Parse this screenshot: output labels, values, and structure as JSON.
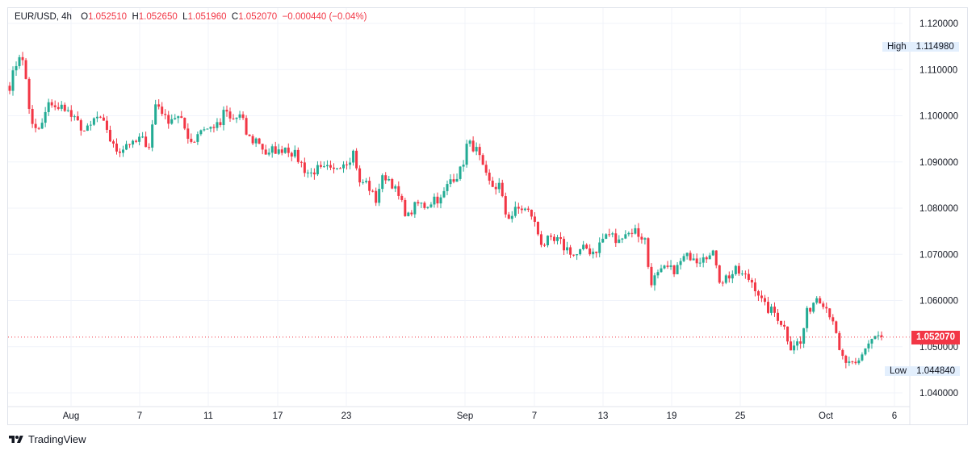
{
  "header": {
    "symbol": "EUR/USD, 4h",
    "o_label": "O",
    "o_value": "1.052510",
    "h_label": "H",
    "h_value": "1.052650",
    "l_label": "L",
    "l_value": "1.051960",
    "c_label": "C",
    "c_value": "1.052070",
    "change": "−0.000440 (−0.04%)"
  },
  "markers": {
    "high_label": "High",
    "high_value": "1.114980",
    "low_label": "Low",
    "low_value": "1.044840",
    "last_price": "1.052070"
  },
  "branding": {
    "text": "TradingView"
  },
  "colors": {
    "up": "#22ab94",
    "down": "#f23645",
    "grid": "#f0f3fa",
    "text": "#131722"
  },
  "chart_data": {
    "type": "candlestick",
    "symbol": "EUR/USD",
    "interval": "4h",
    "ylim": [
      1.0375,
      1.1225
    ],
    "y_ticks": [
      "1.120000",
      "1.110000",
      "1.100000",
      "1.090000",
      "1.080000",
      "1.070000",
      "1.060000",
      "1.050000",
      "1.040000"
    ],
    "x_ticks": [
      "Aug",
      "7",
      "11",
      "17",
      "23",
      "Sep",
      "7",
      "13",
      "19",
      "25",
      "Oct",
      "6"
    ],
    "last_close": 1.05207,
    "high": 1.11498,
    "low": 1.04484,
    "close_path": [
      1.1065,
      1.1105,
      1.114,
      1.108,
      1.098,
      1.0965,
      1.098,
      1.102,
      1.103,
      1.101,
      1.1025,
      1.1005,
      1.099,
      1.098,
      1.0965,
      1.0975,
      1.1,
      1.0985,
      1.0975,
      1.0935,
      1.0925,
      1.093,
      1.0945,
      1.0935,
      1.095,
      1.0945,
      1.0935,
      1.1025,
      1.102,
      1.099,
      1.0995,
      1.1,
      1.0985,
      1.096,
      1.094,
      1.0965,
      1.0975,
      1.097,
      1.098,
      1.0975,
      1.1015,
      1.099,
      1.0995,
      1.1,
      1.096,
      1.0945,
      1.095,
      1.093,
      1.091,
      1.093,
      1.092,
      1.0935,
      1.0925,
      1.0915,
      1.09,
      1.088,
      1.0875,
      1.0885,
      1.088,
      1.0885,
      1.0875,
      1.0895,
      1.09,
      1.0905,
      1.0925,
      1.085,
      1.086,
      1.084,
      1.0815,
      1.086,
      1.087,
      1.0855,
      1.083,
      1.0805,
      1.078,
      1.08,
      1.081,
      1.0805,
      1.081,
      1.0825,
      1.0815,
      1.084,
      1.0865,
      1.087,
      1.0885,
      1.094,
      1.0935,
      1.092,
      1.088,
      1.0855,
      1.0845,
      1.085,
      1.079,
      1.078,
      1.0795,
      1.08,
      1.0795,
      1.0785,
      1.075,
      1.072,
      1.073,
      1.0725,
      1.073,
      1.0715,
      1.071,
      1.0695,
      1.0705,
      1.0715,
      1.0705,
      1.071,
      1.073,
      1.0745,
      1.074,
      1.072,
      1.075,
      1.0745,
      1.0755,
      1.074,
      1.0735,
      1.064,
      1.065,
      1.066,
      1.067,
      1.0665,
      1.067,
      1.069,
      1.0695,
      1.07,
      1.0685,
      1.0705,
      1.0695,
      1.07,
      1.064,
      1.065,
      1.0655,
      1.0665,
      1.0655,
      1.065,
      1.064,
      1.062,
      1.059,
      1.058,
      1.0575,
      1.056,
      1.054,
      1.05,
      1.051,
      1.0505,
      1.057,
      1.059,
      1.061,
      1.06,
      1.058,
      1.056,
      1.049,
      1.047,
      1.046,
      1.0455,
      1.047,
      1.05,
      1.0515,
      1.0525,
      1.05207
    ]
  }
}
